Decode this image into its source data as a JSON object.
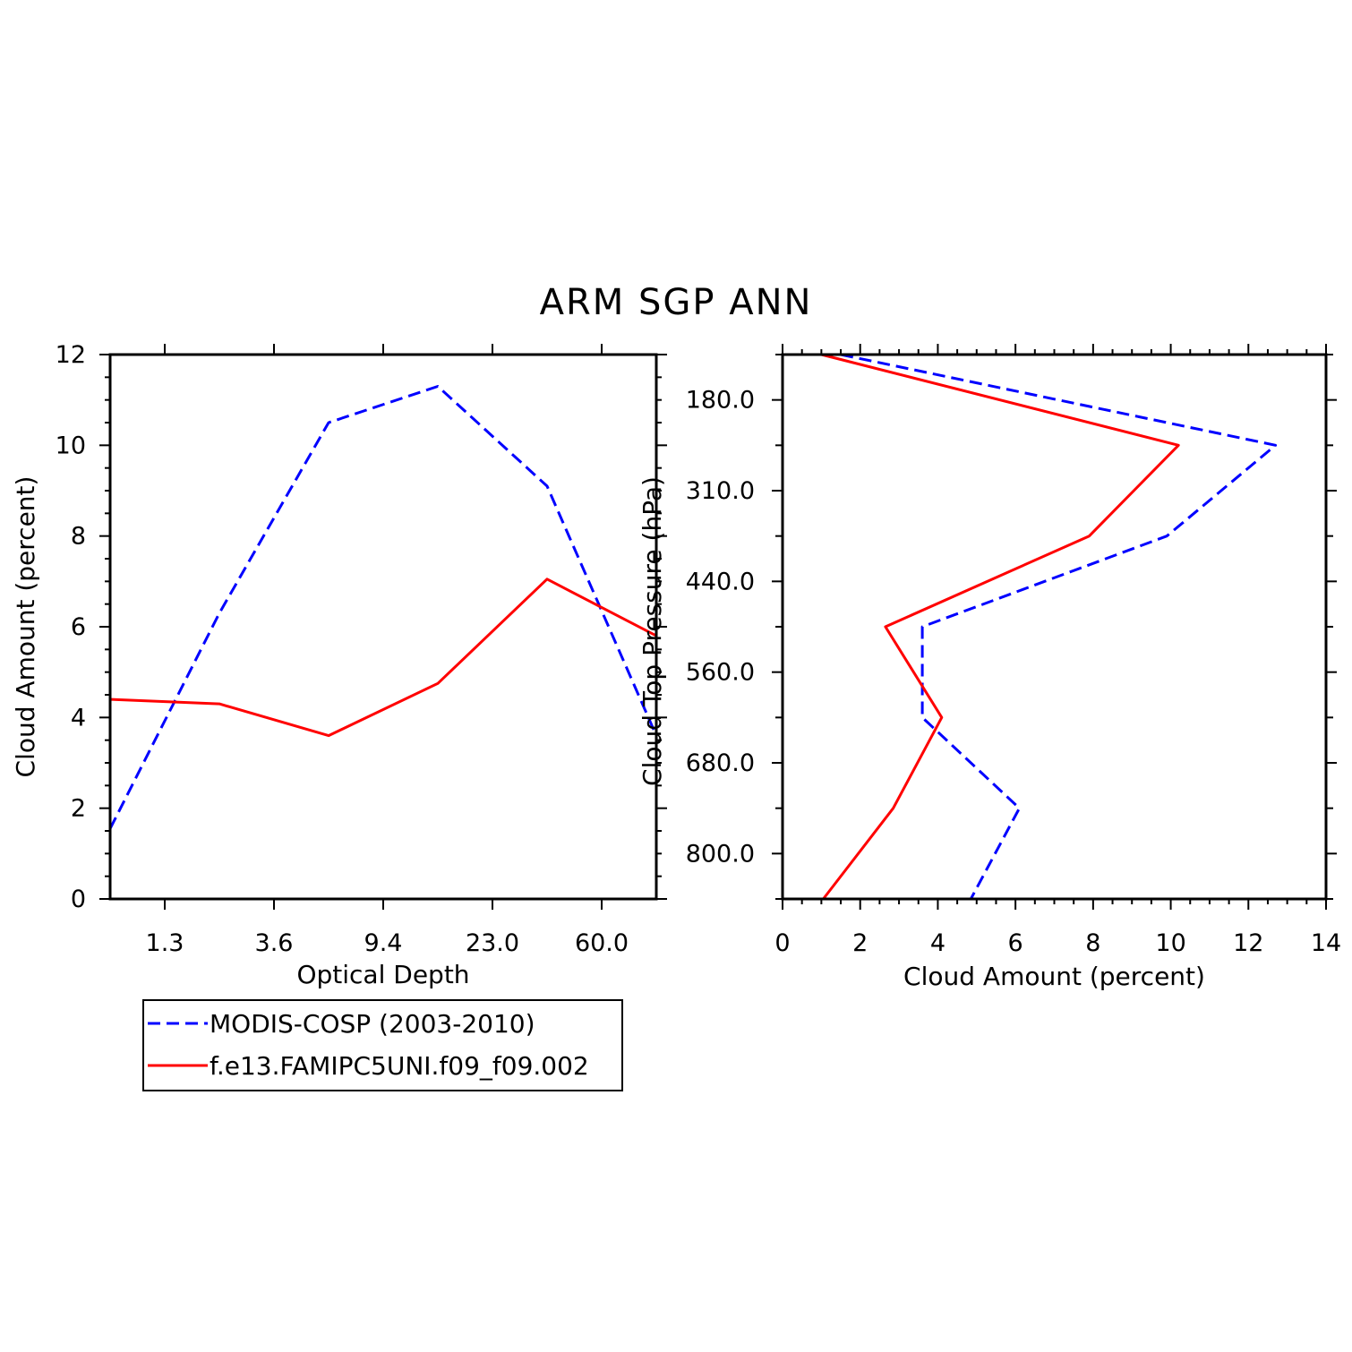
{
  "title": "ARM SGP ANN",
  "colors": {
    "obs": "#0000ff",
    "model": "#ff0000",
    "axis": "#000000"
  },
  "chart_data": [
    {
      "type": "line",
      "title": "ARM SGP ANN",
      "xlabel": "Optical Depth",
      "ylabel": "Cloud Amount (percent)",
      "x": [
        1,
        2,
        3,
        4,
        5,
        6
      ],
      "xlim": [
        0.5,
        5.5
      ],
      "xticks": [
        1,
        2,
        3,
        4,
        5
      ],
      "xtick_labels": [
        "1.3",
        "3.6",
        "9.4",
        "23.0",
        "60.0"
      ],
      "ylim": [
        0,
        12
      ],
      "yticks": [
        0,
        2,
        4,
        6,
        8,
        10,
        12
      ],
      "ytick_labels": [
        "0",
        "2",
        "4",
        "6",
        "8",
        "10",
        "12"
      ],
      "series": [
        {
          "name": "MODIS-COSP (2003-2010)",
          "style": "dashed",
          "color": "#0000ff",
          "points": [
            [
              0.5,
              1.55
            ],
            [
              1.5,
              6.3
            ],
            [
              2.5,
              10.5
            ],
            [
              3.5,
              11.3
            ],
            [
              4.5,
              9.1
            ],
            [
              5.5,
              3.6
            ]
          ]
        },
        {
          "name": "f.e13.FAMIPC5UNI.f09_f09.002",
          "style": "solid",
          "color": "#ff0000",
          "points": [
            [
              0.5,
              4.4
            ],
            [
              1.5,
              4.3
            ],
            [
              2.5,
              3.6
            ],
            [
              3.5,
              4.75
            ],
            [
              4.5,
              7.05
            ],
            [
              5.5,
              5.8
            ]
          ]
        }
      ]
    },
    {
      "type": "line",
      "xlabel": "Cloud Amount (percent)",
      "ylabel": "Cloud Top Pressure (hPa)",
      "xlim": [
        0,
        14
      ],
      "xticks": [
        0,
        2,
        4,
        6,
        8,
        10,
        12,
        14
      ],
      "xtick_labels": [
        "0",
        "2",
        "4",
        "6",
        "8",
        "10",
        "12",
        "14"
      ],
      "ylim": [
        0,
        6
      ],
      "yticks": [
        0.5,
        1.5,
        2.5,
        3.5,
        4.5,
        5.5
      ],
      "ytick_labels": [
        "180.0",
        "310.0",
        "440.0",
        "560.0",
        "680.0",
        "800.0"
      ],
      "series": [
        {
          "name": "MODIS-COSP (2003-2010)",
          "style": "dashed",
          "color": "#0000ff",
          "points": [
            [
              1.5,
              0
            ],
            [
              12.7,
              1
            ],
            [
              9.9,
              2
            ],
            [
              3.6,
              3
            ],
            [
              3.6,
              4
            ],
            [
              6.1,
              5
            ],
            [
              4.85,
              6
            ]
          ]
        },
        {
          "name": "f.e13.FAMIPC5UNI.f09_f09.002",
          "style": "solid",
          "color": "#ff0000",
          "points": [
            [
              1.0,
              0
            ],
            [
              10.2,
              1
            ],
            [
              7.9,
              2
            ],
            [
              2.65,
              3
            ],
            [
              4.1,
              4
            ],
            [
              2.85,
              5
            ],
            [
              1.05,
              6
            ]
          ]
        }
      ]
    }
  ],
  "legend": {
    "entries": [
      {
        "label": "MODIS-COSP (2003-2010)",
        "style": "dashed",
        "color": "#0000ff"
      },
      {
        "label": "f.e13.FAMIPC5UNI.f09_f09.002",
        "style": "solid",
        "color": "#ff0000"
      }
    ]
  }
}
